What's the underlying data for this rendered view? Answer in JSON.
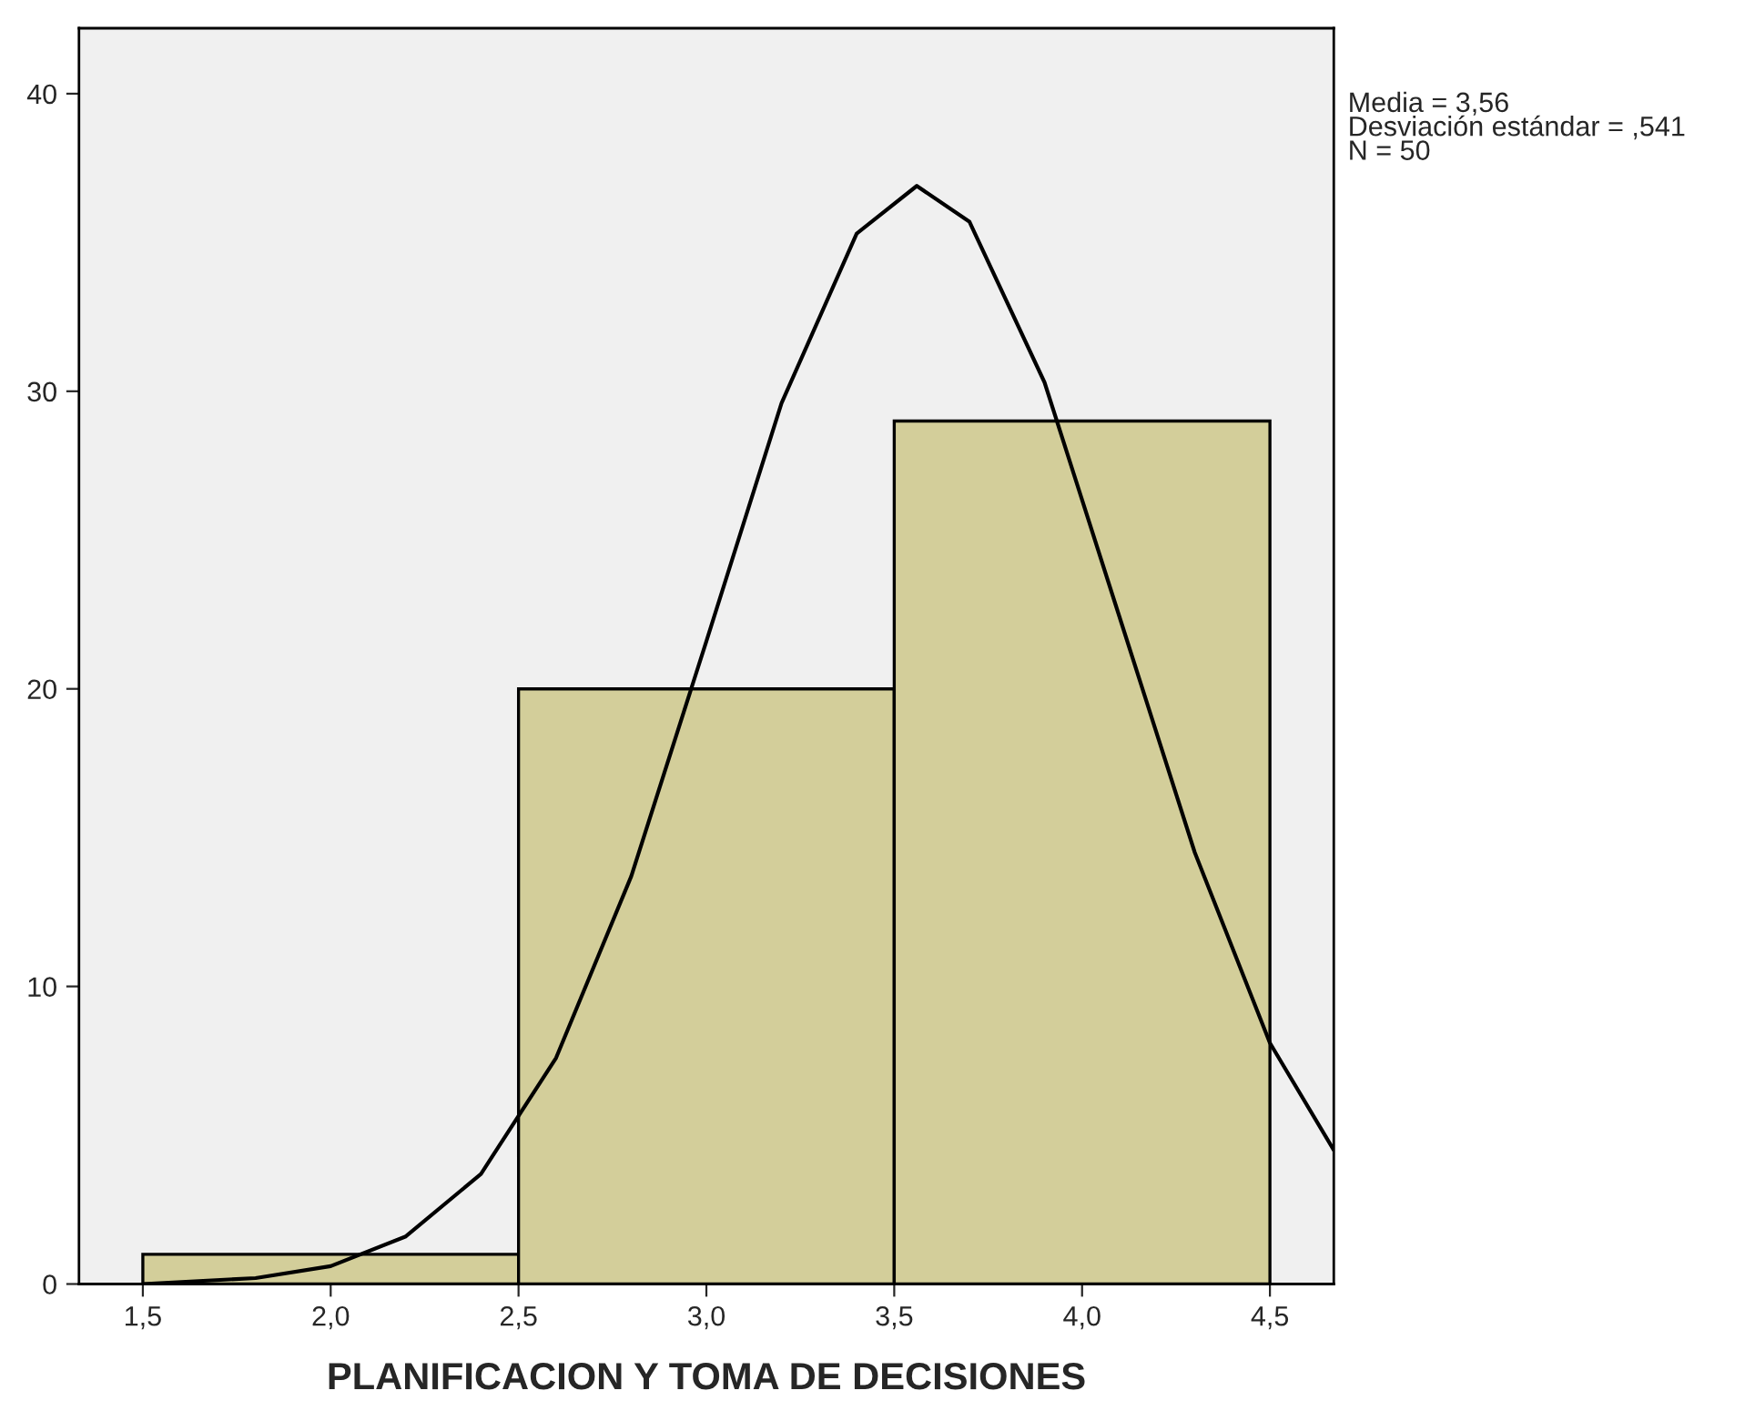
{
  "chart_data": {
    "type": "histogram",
    "xlabel": "PLANIFICACION Y TOMA DE DECISIONES",
    "bins": [
      1.5,
      2.5,
      3.5,
      4.5
    ],
    "values": [
      1,
      20,
      29
    ],
    "color": "#d3ce9a",
    "series": [
      {
        "type": "line",
        "color": "#000000",
        "x": [
          1.5,
          1.8,
          2.0,
          2.2,
          2.4,
          2.6,
          2.8,
          3.0,
          3.2,
          3.4,
          3.56,
          3.7,
          3.9,
          4.1,
          4.3,
          4.5,
          4.67
        ],
        "values": [
          0.0,
          0.2,
          0.6,
          1.6,
          3.7,
          7.6,
          13.7,
          21.6,
          29.6,
          35.3,
          36.9,
          35.7,
          30.3,
          22.4,
          14.5,
          8.1,
          4.5
        ]
      }
    ],
    "xlim": [
      1.33,
      4.67
    ],
    "xticks": [
      {
        "value": 1.5,
        "label": "1,5"
      },
      {
        "value": 2.0,
        "label": "2,0"
      },
      {
        "value": 2.5,
        "label": "2,5"
      },
      {
        "value": 3.0,
        "label": "3,0"
      },
      {
        "value": 3.5,
        "label": "3,5"
      },
      {
        "value": 4.0,
        "label": "4,0"
      },
      {
        "value": 4.5,
        "label": "4,5"
      }
    ],
    "ylim": [
      0,
      42.2
    ],
    "yticks": [
      0,
      10,
      20,
      30,
      40
    ],
    "grid": false,
    "annotations": [
      "Media = 3,56",
      "Desviación estándar = ,541",
      "N = 50"
    ]
  }
}
